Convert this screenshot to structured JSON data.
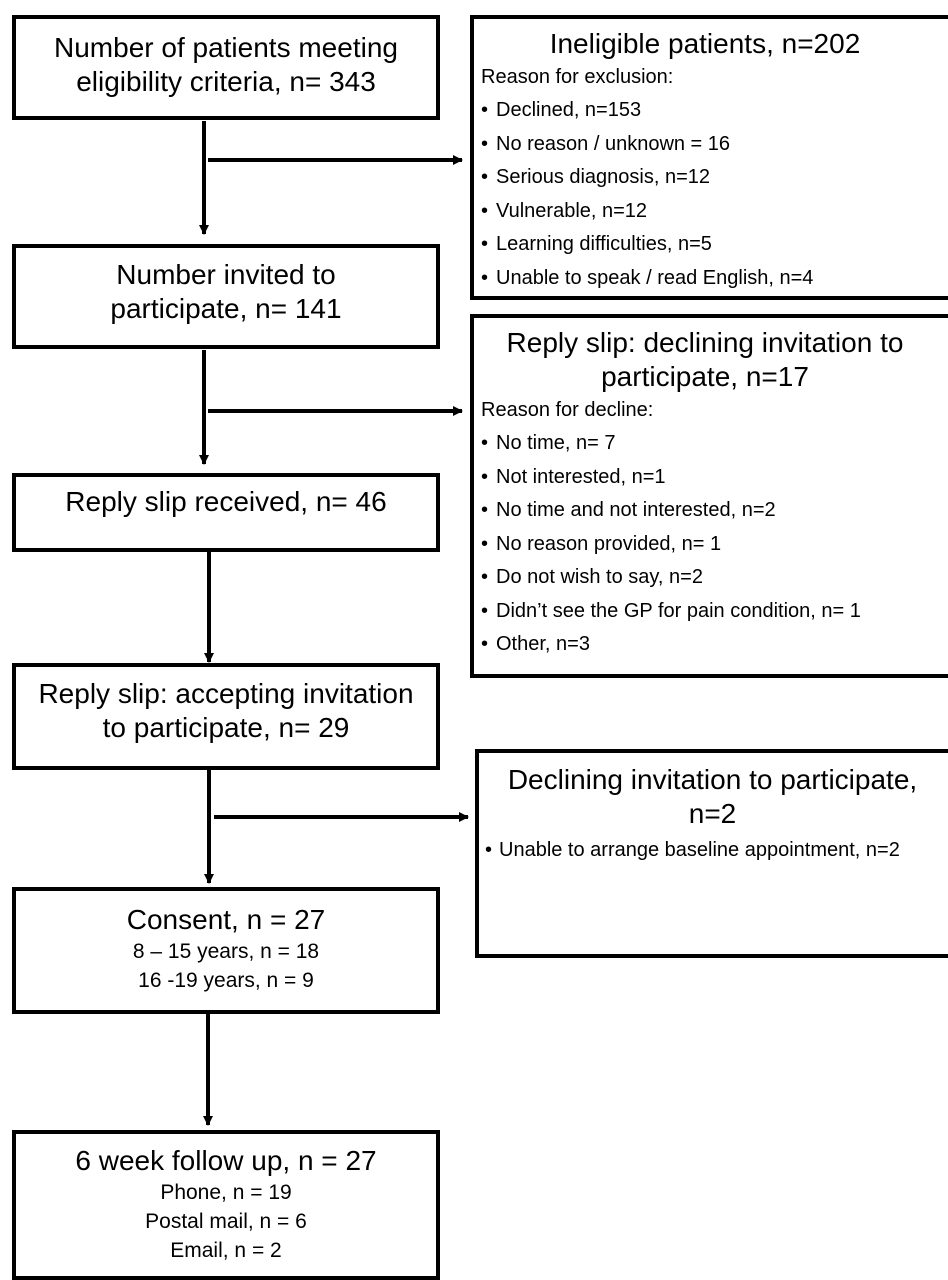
{
  "flow": {
    "eligible": {
      "title": "Number of patients meeting eligibility criteria, n= 343"
    },
    "invited": {
      "title": "Number invited to participate, n= 141"
    },
    "reply_received": {
      "title": "Reply slip received, n= 46"
    },
    "accepting": {
      "title": "Reply slip: accepting invitation to participate, n= 29"
    },
    "consent": {
      "title": "Consent, n = 27",
      "lines": [
        "8 – 15 years, n = 18",
        "16 -19 years, n = 9"
      ]
    },
    "followup": {
      "title": "6 week follow up, n = 27",
      "lines": [
        "Phone, n = 19",
        "Postal mail, n = 6",
        "Email, n = 2"
      ]
    }
  },
  "side": {
    "ineligible": {
      "title": "Ineligible patients, n=202",
      "reason_header": "Reason for exclusion:",
      "bullet": "•",
      "items": [
        "Declined, n=153",
        "No reason / unknown = 16",
        "Serious diagnosis, n=12",
        "Vulnerable, n=12",
        "Learning difficulties, n=5",
        "Unable to speak / read English, n=4"
      ]
    },
    "declining_slip": {
      "title": "Reply slip: declining invitation to participate, n=17",
      "reason_header": "Reason for decline:",
      "bullet": "•",
      "items": [
        "No time, n= 7",
        "Not interested, n=1",
        "No time and not interested, n=2",
        "No reason provided, n= 1",
        "Do not wish to say, n=2",
        "Didn’t see the GP for pain condition, n= 1",
        "Other, n=3"
      ]
    },
    "declining_invitation": {
      "title": "Declining invitation to participate, n=2",
      "bullet": "•",
      "items": [
        "Unable to arrange baseline appointment, n=2"
      ]
    }
  }
}
